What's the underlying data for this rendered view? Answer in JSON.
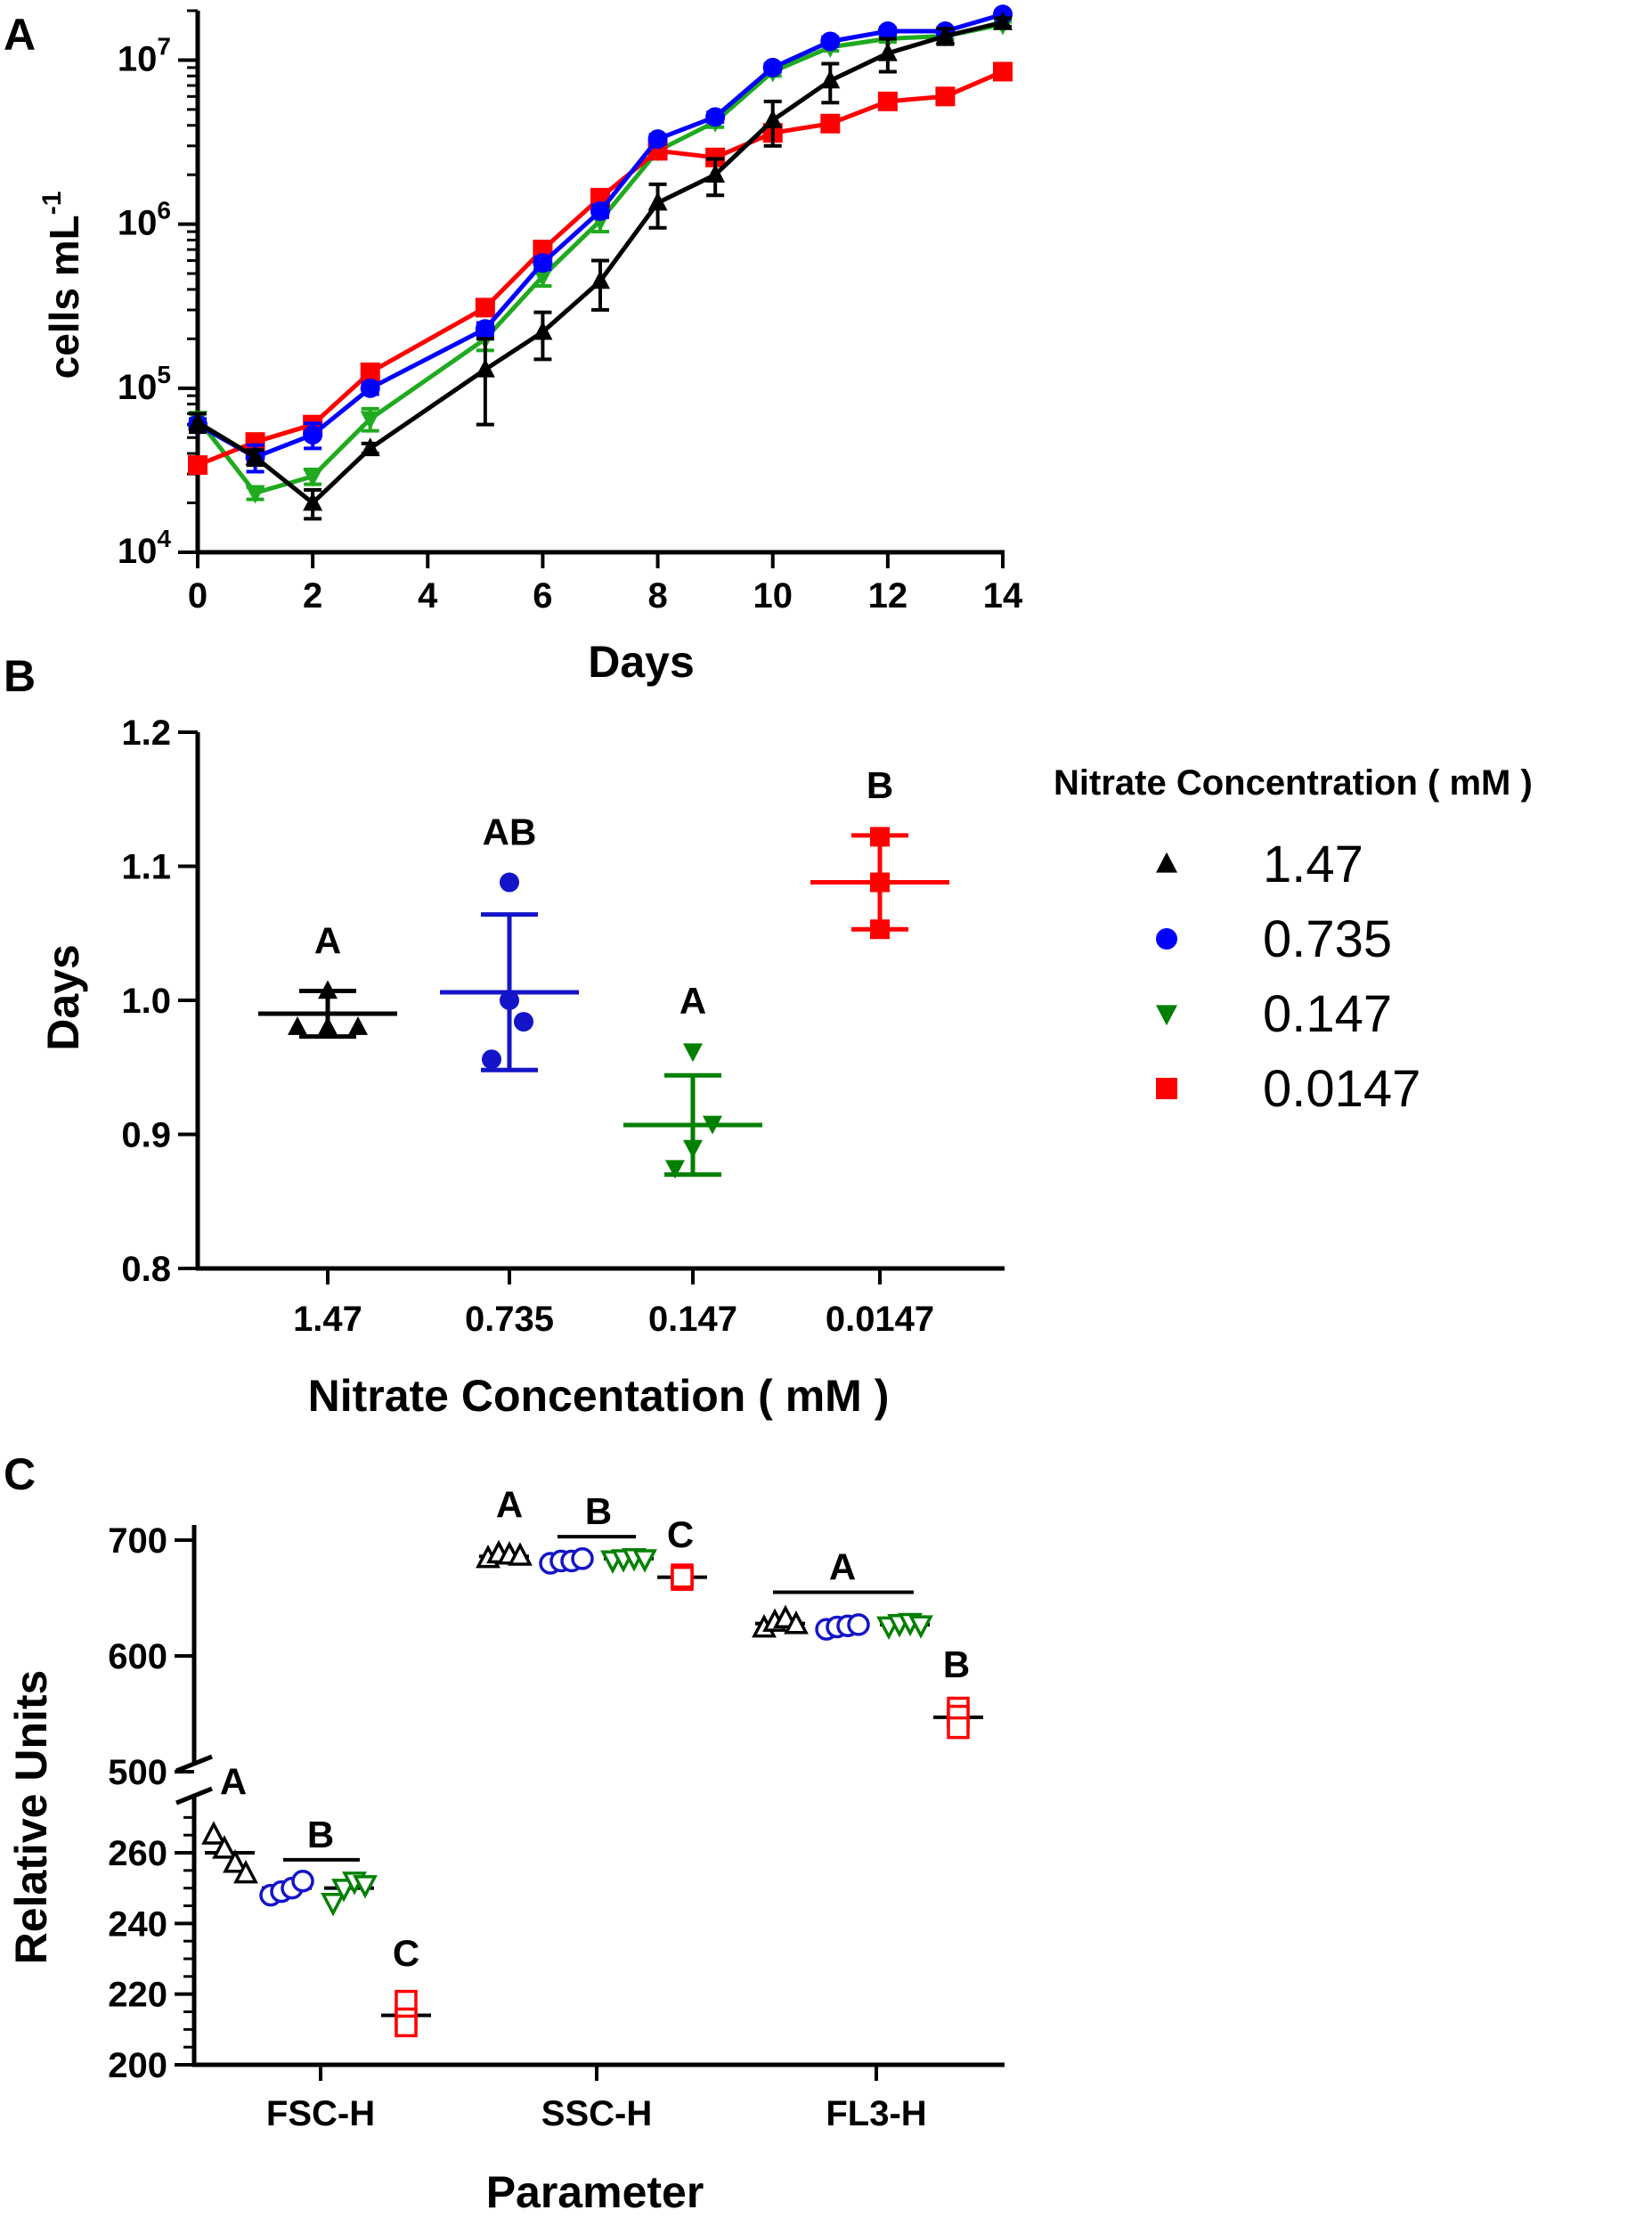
{
  "legend": {
    "title": "Nitrate Concentration ( mM )",
    "entries": [
      "1.47",
      "0.735",
      "0.147",
      "0.0147"
    ]
  },
  "colors": {
    "n147": "#000000",
    "n0735": "#0000ff",
    "n0147": "#1faa1f",
    "n00147": "#ff0000",
    "n0147_dark": "#008000",
    "n0735_dark": "#1414c8"
  },
  "chart_data": [
    {
      "panel": "A",
      "type": "line",
      "xlabel": "Days",
      "ylabel": "cells mL",
      "ylabel_sup": "-1",
      "yscale": "log",
      "xlim": [
        0,
        14
      ],
      "ylim": [
        10000,
        20000000
      ],
      "x_ticks": [
        "0",
        "2",
        "4",
        "6",
        "8",
        "10",
        "12",
        "14"
      ],
      "y_ticks": [
        {
          "base": "10",
          "exp": "4",
          "value": 10000
        },
        {
          "base": "10",
          "exp": "5",
          "value": 100000
        },
        {
          "base": "10",
          "exp": "6",
          "value": 1000000
        },
        {
          "base": "10",
          "exp": "7",
          "value": 10000000
        }
      ],
      "x": [
        0,
        1,
        2,
        3,
        5,
        6,
        7,
        8,
        9,
        10,
        11,
        12,
        13,
        14
      ],
      "series": [
        {
          "name": "1.47",
          "marker": "triangle-up",
          "values": [
            62000,
            38000,
            20000,
            43000,
            130000,
            220000,
            450000,
            1350000,
            2000000,
            4300000,
            7500000,
            11000000,
            14000000,
            17000000
          ],
          "err": [
            8000,
            4000,
            4000,
            3000,
            70000,
            70000,
            150000,
            400000,
            500000,
            1300000,
            2000000,
            2500000,
            1500000,
            1000000
          ]
        },
        {
          "name": "0.735",
          "marker": "circle",
          "values": [
            60000,
            38000,
            52000,
            100000,
            230000,
            580000,
            1200000,
            3300000,
            4500000,
            9000000,
            13000000,
            15000000,
            15000000,
            19000000
          ],
          "err": [
            5000,
            7000,
            9000,
            8000,
            20000,
            50000,
            100000,
            200000,
            300000,
            500000,
            800000,
            700000,
            700000,
            800000
          ]
        },
        {
          "name": "0.147",
          "marker": "triangle-down",
          "values": [
            65000,
            23000,
            29000,
            65000,
            200000,
            480000,
            1050000,
            2800000,
            4200000,
            8500000,
            12000000,
            13500000,
            14000000,
            16500000
          ],
          "err": [
            6000,
            2000,
            3000,
            10000,
            30000,
            60000,
            150000,
            200000,
            300000,
            500000,
            600000,
            600000,
            600000,
            600000
          ]
        },
        {
          "name": "0.0147",
          "marker": "square",
          "values": [
            34000,
            47000,
            60000,
            125000,
            310000,
            700000,
            1450000,
            2800000,
            2550000,
            3600000,
            4100000,
            5600000,
            6000000,
            8500000
          ],
          "err": [
            3000,
            3000,
            4000,
            8000,
            20000,
            40000,
            80000,
            150000,
            150000,
            300000,
            300000,
            300000,
            300000,
            500000
          ]
        }
      ]
    },
    {
      "panel": "B",
      "type": "scatter",
      "xlabel": "Nitrate Concentation ( mM )",
      "ylabel": "Days",
      "ylim": [
        0.8,
        1.2
      ],
      "y_ticks": [
        "0.8",
        "0.9",
        "1.0",
        "1.1",
        "1.2"
      ],
      "categories": [
        "1.47",
        "0.735",
        "0.147",
        "0.0147"
      ],
      "groups": [
        {
          "points": [
            0.98,
            1.007,
            0.98,
            0.98
          ],
          "mean": 0.99,
          "sd": 0.017,
          "letter": "A"
        },
        {
          "points": [
            1.088,
            1.0,
            0.956,
            0.984
          ],
          "mean": 1.006,
          "sd": 0.058,
          "letter": "AB"
        },
        {
          "points": [
            0.962,
            0.89,
            0.875,
            0.908
          ],
          "mean": 0.907,
          "sd": 0.037,
          "letter": "A"
        },
        {
          "points": [
            1.122,
            1.088,
            1.053
          ],
          "mean": 1.088,
          "sd": 0.035,
          "letter": "B"
        }
      ]
    },
    {
      "panel": "C",
      "type": "scatter",
      "xlabel": "Parameter",
      "ylabel": "Relative Units",
      "y_broken_axis": true,
      "y_lower_range": [
        200,
        270
      ],
      "y_upper_range": [
        490,
        710
      ],
      "y_ticks_lower": [
        "200",
        "220",
        "240",
        "260"
      ],
      "y_ticks_upper": [
        "500",
        "600",
        "700"
      ],
      "categories": [
        "FSC-H",
        "SSC-H",
        "FL3-H"
      ],
      "groups": [
        {
          "param": "FSC-H",
          "series": "1.47",
          "points": [
            265,
            261,
            257,
            254
          ],
          "mean": 260
        },
        {
          "param": "FSC-H",
          "series": "0.735",
          "points": [
            248,
            249,
            250,
            252
          ],
          "mean": 250
        },
        {
          "param": "FSC-H",
          "series": "0.147",
          "points": [
            246,
            250,
            252,
            251
          ],
          "mean": 250
        },
        {
          "param": "FSC-H",
          "series": "0.0147",
          "points": [
            218,
            213,
            211
          ],
          "mean": 214
        },
        {
          "param": "SSC-H",
          "series": "1.47",
          "points": [
            684,
            688,
            687,
            686
          ],
          "mean": 686
        },
        {
          "param": "SSC-H",
          "series": "0.735",
          "points": [
            680,
            682,
            682,
            684
          ],
          "mean": 682
        },
        {
          "param": "SSC-H",
          "series": "0.147",
          "points": [
            683,
            684,
            685,
            684
          ],
          "mean": 684
        },
        {
          "param": "SSC-H",
          "series": "0.0147",
          "points": [
            666,
            670,
            668
          ],
          "mean": 668
        },
        {
          "param": "FL3-H",
          "series": "1.47",
          "points": [
            624,
            629,
            632,
            627
          ],
          "mean": 628
        },
        {
          "param": "FL3-H",
          "series": "0.735",
          "points": [
            623,
            625,
            626,
            627
          ],
          "mean": 625
        },
        {
          "param": "FL3-H",
          "series": "0.147",
          "points": [
            626,
            628,
            629,
            627
          ],
          "mean": 627
        },
        {
          "param": "FL3-H",
          "series": "0.0147",
          "points": [
            555,
            548,
            538
          ],
          "mean": 547
        }
      ],
      "letters": [
        {
          "text": "A",
          "param": "FSC-H",
          "series": "1.47"
        },
        {
          "text": "B",
          "param": "FSC-H",
          "series": "0.735-0.147",
          "bar": true
        },
        {
          "text": "C",
          "param": "FSC-H",
          "series": "0.0147"
        },
        {
          "text": "A",
          "param": "SSC-H",
          "series": "1.47"
        },
        {
          "text": "B",
          "param": "SSC-H",
          "series": "0.735-0.147",
          "bar": true
        },
        {
          "text": "C",
          "param": "SSC-H",
          "series": "0.0147"
        },
        {
          "text": "A",
          "param": "FL3-H",
          "series": "1.47-0.147",
          "bar": true
        },
        {
          "text": "B",
          "param": "FL3-H",
          "series": "0.0147"
        }
      ]
    }
  ],
  "panel_labels": [
    "A",
    "B",
    "C"
  ]
}
